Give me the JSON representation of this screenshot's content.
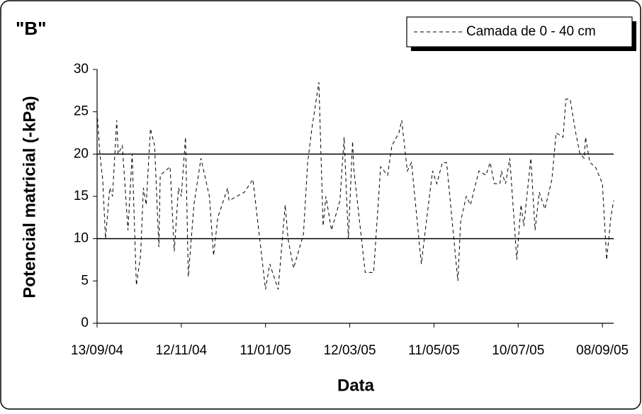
{
  "chart_data": {
    "type": "line",
    "title": "\"B\"",
    "x_label": "Data",
    "y_label": "Potencial matricial (-kPa)",
    "xlim": [
      "13/09/04",
      "16/09/05"
    ],
    "xticks": [
      "13/09/04",
      "12/11/04",
      "11/01/05",
      "12/03/05",
      "11/05/05",
      "10/07/05",
      "08/09/05"
    ],
    "ylim": [
      0,
      30
    ],
    "yticks": [
      0,
      5,
      10,
      15,
      20,
      25,
      30
    ],
    "reference_lines": [
      10,
      20
    ],
    "legend": "top-right",
    "x": [
      "13/09/04",
      "15/09/04",
      "17/09/04",
      "19/09/04",
      "22/09/04",
      "24/09/04",
      "27/09/04",
      "28/09/04",
      "01/10/04",
      "03/10/04",
      "05/10/04",
      "08/10/04",
      "11/10/04",
      "14/10/04",
      "16/10/04",
      "18/10/04",
      "21/10/04",
      "24/10/04",
      "27/10/04",
      "28/10/04",
      "04/11/04",
      "07/11/04",
      "10/11/04",
      "12/11/04",
      "15/11/04",
      "17/11/04",
      "21/11/04",
      "26/11/04",
      "02/12/04",
      "05/12/04",
      "08/12/04",
      "15/12/04",
      "16/12/04",
      "27/12/04",
      "02/01/05",
      "11/01/05",
      "14/01/05",
      "20/01/05",
      "25/01/05",
      "27/01/05",
      "31/01/05",
      "07/02/05",
      "10/02/05",
      "13/02/05",
      "18/02/05",
      "21/02/05",
      "23/02/05",
      "27/02/05",
      "05/03/05",
      "08/03/05",
      "11/03/05",
      "14/03/05",
      "15/03/05",
      "23/03/05",
      "29/03/05",
      "03/04/05",
      "08/04/05",
      "11/04/05",
      "16/04/05",
      "18/04/05",
      "22/04/05",
      "25/04/05",
      "02/05/05",
      "07/05/05",
      "10/05/05",
      "13/05/05",
      "17/05/05",
      "20/05/05",
      "28/05/05",
      "30/05/05",
      "03/06/05",
      "06/06/05",
      "12/06/05",
      "17/06/05",
      "20/06/05",
      "23/06/05",
      "27/06/05",
      "28/06/05",
      "01/07/05",
      "04/07/05",
      "09/07/05",
      "12/07/05",
      "14/07/05",
      "19/07/05",
      "22/07/05",
      "25/07/05",
      "29/07/05",
      "03/08/05",
      "06/08/05",
      "11/08/05",
      "13/08/05",
      "16/08/05",
      "20/08/05",
      "23/08/05",
      "26/08/05",
      "27/08/05",
      "30/08/05",
      "03/09/05",
      "08/09/05",
      "11/09/05",
      "14/09/05",
      "16/09/05"
    ],
    "series": [
      {
        "name": "Camada de 0 - 40 cm",
        "color": "#000000",
        "values": [
          25,
          20,
          17,
          10,
          16,
          15,
          24,
          20,
          21,
          16,
          11,
          20,
          4.5,
          8,
          16,
          14,
          23,
          21,
          9,
          17.5,
          18.5,
          8.5,
          16,
          15,
          22,
          5.5,
          14,
          19.5,
          15,
          8,
          12.5,
          16,
          14.5,
          15.5,
          17,
          4,
          7,
          4,
          14,
          10,
          6.5,
          10.5,
          19,
          23,
          28.5,
          11.5,
          15,
          11,
          14.5,
          22,
          10,
          21.5,
          18,
          6,
          6,
          18.5,
          17.5,
          21,
          22.5,
          24,
          18,
          19,
          7,
          14,
          18,
          16.5,
          19,
          19,
          5,
          12,
          15,
          14,
          18,
          17.5,
          19,
          16.5,
          16.5,
          18,
          16.5,
          19.5,
          7.5,
          14,
          11.5,
          19.5,
          11,
          15.5,
          13.5,
          17,
          22.5,
          22,
          26.5,
          26.5,
          22.5,
          20,
          19.5,
          22,
          19,
          18.5,
          16.5,
          7.5,
          12.5,
          14.5
        ]
      }
    ]
  }
}
